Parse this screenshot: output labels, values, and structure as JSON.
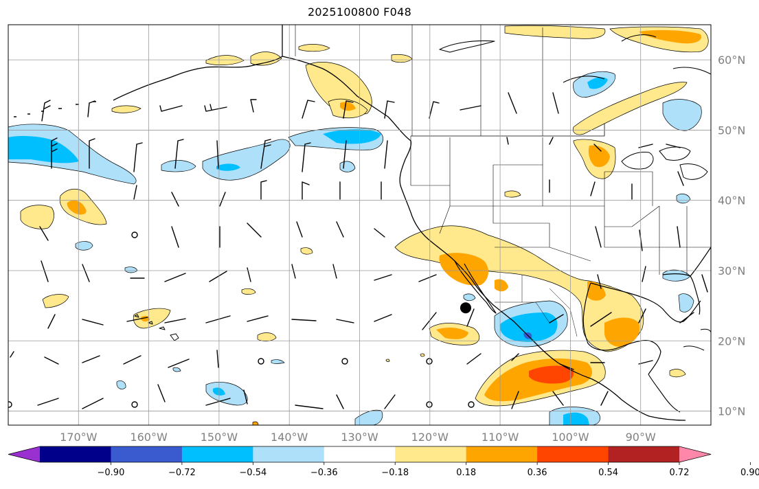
{
  "title": "2025100800 F048",
  "map": {
    "extent": {
      "lon_min": -180,
      "lon_max": -80,
      "lat_min": 8,
      "lat_max": 65
    },
    "lat_ticks": [
      {
        "value": 10,
        "label": "10°N"
      },
      {
        "value": 20,
        "label": "20°N"
      },
      {
        "value": 30,
        "label": "30°N"
      },
      {
        "value": 40,
        "label": "40°N"
      },
      {
        "value": 50,
        "label": "50°N"
      },
      {
        "value": 60,
        "label": "60°N"
      }
    ],
    "lon_ticks": [
      {
        "value": -170,
        "label": "170°W"
      },
      {
        "value": -160,
        "label": "160°W"
      },
      {
        "value": -150,
        "label": "150°W"
      },
      {
        "value": -140,
        "label": "140°W"
      },
      {
        "value": -130,
        "label": "130°W"
      },
      {
        "value": -120,
        "label": "120°W"
      },
      {
        "value": -110,
        "label": "110°W"
      },
      {
        "value": -100,
        "label": "100°W"
      },
      {
        "value": -90,
        "label": "90°W"
      }
    ],
    "marker": {
      "lon": -114.9,
      "lat": 24.7,
      "color": "#000000"
    },
    "colors": {
      "grid": "#9a9a9a",
      "coast": "#000000",
      "label": "#808080"
    }
  },
  "colorbar": {
    "segments": [
      {
        "color": "#9b30d0"
      },
      {
        "color": "#00008b"
      },
      {
        "color": "#3a5bd0"
      },
      {
        "color": "#00bfff"
      },
      {
        "color": "#aee0fa"
      },
      {
        "color": "#ffffff"
      },
      {
        "color": "#ffe98c"
      },
      {
        "color": "#ffa500"
      },
      {
        "color": "#ff4500"
      },
      {
        "color": "#b22222"
      },
      {
        "color": "#ff88aa"
      }
    ],
    "tick_labels": [
      "−0.90",
      "−0.72",
      "−0.54",
      "−0.36",
      "−0.18",
      "0.18",
      "0.36",
      "0.54",
      "0.72",
      "0.90"
    ]
  }
}
